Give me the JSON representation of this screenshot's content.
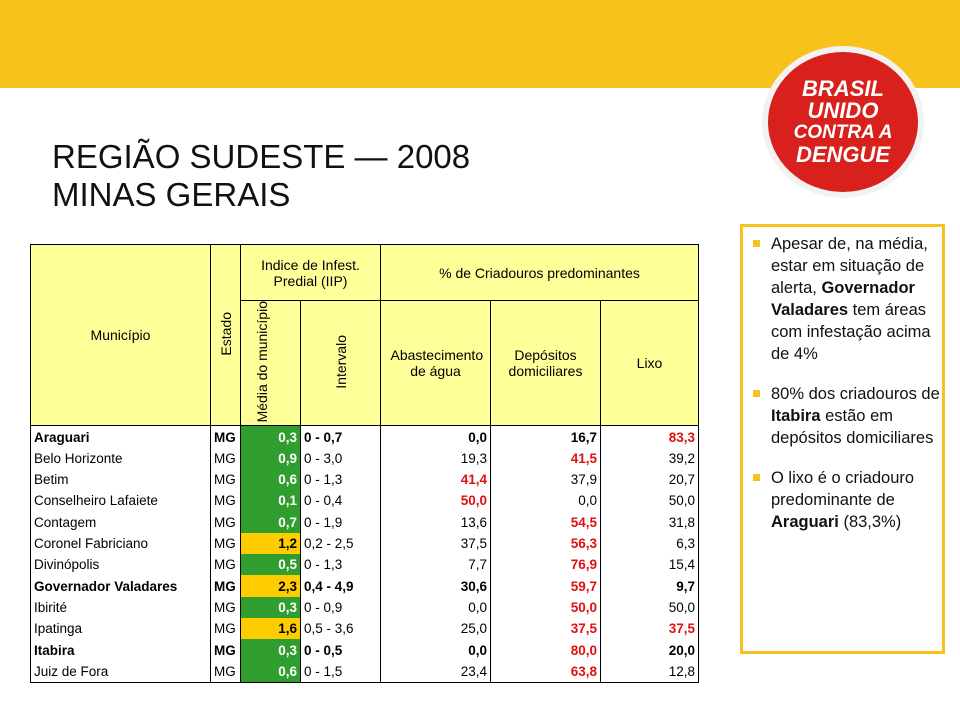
{
  "header": {
    "title_lines": [
      "REGIÃO SUDESTE — 2008",
      "MINAS GERAIS"
    ]
  },
  "logo": {
    "lines": [
      "BRASIL",
      "UNIDO",
      "CONTRA A",
      "DENGUE"
    ]
  },
  "table": {
    "headers": {
      "municipio": "Município",
      "estado": "Estado",
      "iip": "Indice de Infest. Predial (IIP)",
      "media": "Média do município",
      "intervalo": "Intervalo",
      "criadouros": "% de Criadouros predominantes",
      "abastecimento": "Abastecimento de água",
      "depositos": "Depósitos domiciliares",
      "lixo": "Lixo"
    },
    "rows": [
      [
        "Araguari",
        "MG",
        "0,3",
        "0 - 0,7",
        "0,0",
        "16,7",
        "83,3"
      ],
      [
        "Belo Horizonte",
        "MG",
        "0,9",
        "0 - 3,0",
        "19,3",
        "41,5",
        "39,2"
      ],
      [
        "Betim",
        "MG",
        "0,6",
        "0 - 1,3",
        "41,4",
        "37,9",
        "20,7"
      ],
      [
        "Conselheiro Lafaiete",
        "MG",
        "0,1",
        "0 - 0,4",
        "50,0",
        "0,0",
        "50,0"
      ],
      [
        "Contagem",
        "MG",
        "0,7",
        "0 - 1,9",
        "13,6",
        "54,5",
        "31,8"
      ],
      [
        "Coronel Fabriciano",
        "MG",
        "1,2",
        "0,2 - 2,5",
        "37,5",
        "56,3",
        "6,3"
      ],
      [
        "Divinópolis",
        "MG",
        "0,5",
        "0 - 1,3",
        "7,7",
        "76,9",
        "15,4"
      ],
      [
        "Governador Valadares",
        "MG",
        "2,3",
        "0,4 - 4,9",
        "30,6",
        "59,7",
        "9,7"
      ],
      [
        "Ibirité",
        "MG",
        "0,3",
        "0 - 0,9",
        "0,0",
        "50,0",
        "50,0"
      ],
      [
        "Ipatinga",
        "MG",
        "1,6",
        "0,5 - 3,6",
        "25,0",
        "37,5",
        "37,5"
      ],
      [
        "Itabira",
        "MG",
        "0,3",
        "0 - 0,5",
        "0,0",
        "80,0",
        "20,0"
      ],
      [
        "Juiz de Fora",
        "MG",
        "0,6",
        "0 - 1,5",
        "23,4",
        "63,8",
        "12,8"
      ]
    ]
  },
  "notes": [
    [
      {
        "text": "Apesar de, na média, estar em situação de alerta, "
      },
      {
        "text": "Governador Valadares",
        "bold": true
      },
      {
        "text": " tem áreas com infestação acima de 4%"
      }
    ],
    [
      {
        "text": "80% dos criadouros de "
      },
      {
        "text": "Itabira",
        "bold": true
      },
      {
        "text": " estão em depósitos domiciliares"
      }
    ],
    [
      {
        "text": "O lixo é o criadouro predominante de "
      },
      {
        "text": "Araguari",
        "bold": true
      },
      {
        "text": " (83,3%)"
      }
    ]
  ]
}
